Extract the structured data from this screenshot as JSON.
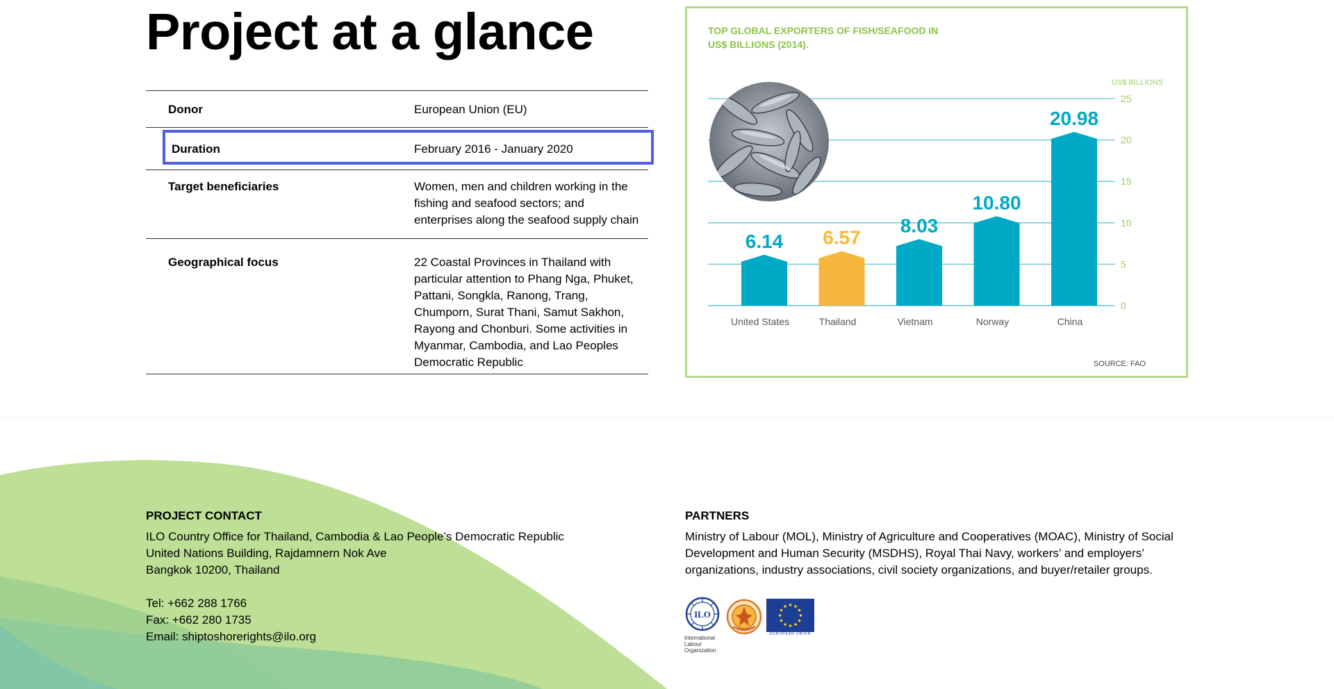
{
  "page": {
    "title": "Project at a glance"
  },
  "glance_table": [
    {
      "label": "Donor",
      "value": "European Union (EU)"
    },
    {
      "label": "Duration",
      "value": "February 2016 - January 2020"
    },
    {
      "label": "Target beneficiaries",
      "value_lines": [
        "Women, men and children working in the",
        "fishing and seafood sectors; and",
        "enterprises along the seafood supply chain"
      ]
    },
    {
      "label": "Geographical focus",
      "value_lines": [
        "22 Coastal Provinces in Thailand with",
        "particular attention to Phang Nga, Phuket,",
        "Pattani, Songkla, Ranong, Trang,",
        "Chumporn, Surat Thani, Samut Sakhon,",
        "Rayong and Chonburi. Some activities in",
        "Myanmar, Cambodia, and Lao Peoples",
        "Democratic Republic"
      ]
    }
  ],
  "colors": {
    "highlight_border": "#4f5fe3",
    "chart_border": "#b3d98a",
    "bar_primary": "#00a9c6",
    "bar_highlight": "#f6b73c",
    "chart_title": "#8bc34a",
    "gridline": "#63c2cf"
  },
  "chart_data": {
    "type": "bar",
    "title_lines": [
      "TOP GLOBAL EXPORTERS OF FISH/SEAFOOD IN",
      "US$ BILLIONS (2014)."
    ],
    "ylabel": "US$ BILLIONS",
    "categories": [
      "United States",
      "Thailand",
      "Vietnam",
      "Norway",
      "China"
    ],
    "values": [
      6.14,
      6.57,
      8.03,
      10.8,
      20.98
    ],
    "value_labels": [
      "6.14",
      "6.57",
      "8.03",
      "10.80",
      "20.98"
    ],
    "highlight_category": "Thailand",
    "ylim": [
      0,
      25
    ],
    "yticks": [
      "0",
      "5",
      "10",
      "15",
      "20",
      "25"
    ],
    "grid": true,
    "source": "SOURCE: FAO"
  },
  "footer": {
    "contact": {
      "heading": "PROJECT CONTACT",
      "address_lines": [
        "ILO Country Office for Thailand, Cambodia & Lao People’s Democratic Republic",
        "United Nations Building, Rajdamnern Nok Ave",
        "Bangkok 10200, Thailand"
      ],
      "tel": "Tel: +662 288 1766",
      "fax": "Fax: +662 280 1735",
      "email_prefix": "Email: ",
      "email": "shiptoshorerights@ilo.org"
    },
    "partners": {
      "heading": "PARTNERS",
      "text_lines": [
        "Ministry of Labour (MOL), Ministry of Agriculture and Cooperatives (MOAC), Ministry of Social",
        "Development and Human Security (MSDHS), Royal Thai Navy, workers’ and employers’",
        "organizations, industry associations, civil society organizations, and buyer/retailer groups."
      ],
      "logos": [
        {
          "icon": "ilo-logo-icon",
          "caption_lines": [
            "International",
            "Labour",
            "Organization"
          ]
        },
        {
          "icon": "ministry-of-labour-seal-icon"
        },
        {
          "icon": "eu-flag-icon",
          "caption": "EUROPEAN UNION"
        }
      ]
    }
  }
}
